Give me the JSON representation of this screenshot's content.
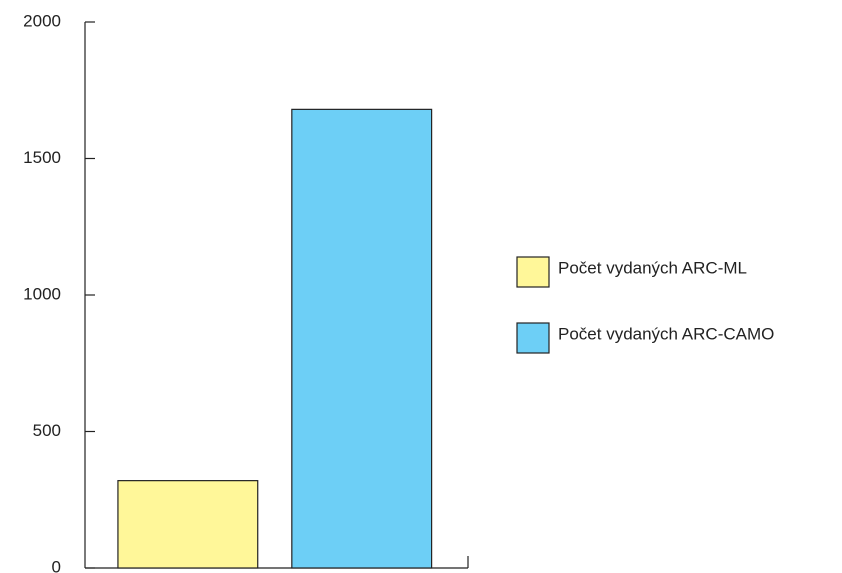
{
  "chart_data": {
    "type": "bar",
    "categories": [
      null
    ],
    "series": [
      {
        "name": "Počet vydaných ARC-ML",
        "color": "#fff799",
        "values": [
          320
        ]
      },
      {
        "name": "Počet vydaných ARC-CAMO",
        "color": "#6dcff6",
        "values": [
          1680
        ]
      }
    ],
    "ylim": [
      0,
      2000
    ],
    "yticks": [
      0,
      500,
      1000,
      1500,
      2000
    ],
    "grid": false,
    "legend": "right"
  }
}
